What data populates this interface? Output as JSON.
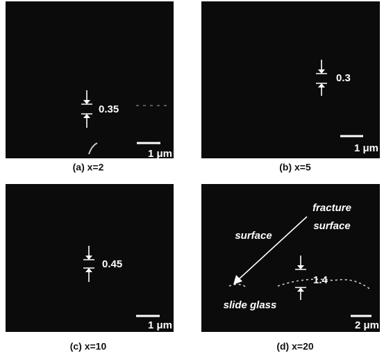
{
  "panels": [
    {
      "caption": "(a) x=2",
      "gap": "0.35",
      "scale_bar": "1 μm"
    },
    {
      "caption": "(b) x=5",
      "gap": "0.3",
      "scale_bar": "1 μm"
    },
    {
      "caption": "(c) x=10",
      "gap": "0.45",
      "scale_bar": "1 μm"
    },
    {
      "caption": "(d) x=20",
      "gap": "1.4",
      "scale_bar": "2 μm",
      "annotations": {
        "fracture_surface": [
          "fracture",
          "surface"
        ],
        "surface": "surface",
        "slide_glass": "slide glass"
      }
    }
  ]
}
